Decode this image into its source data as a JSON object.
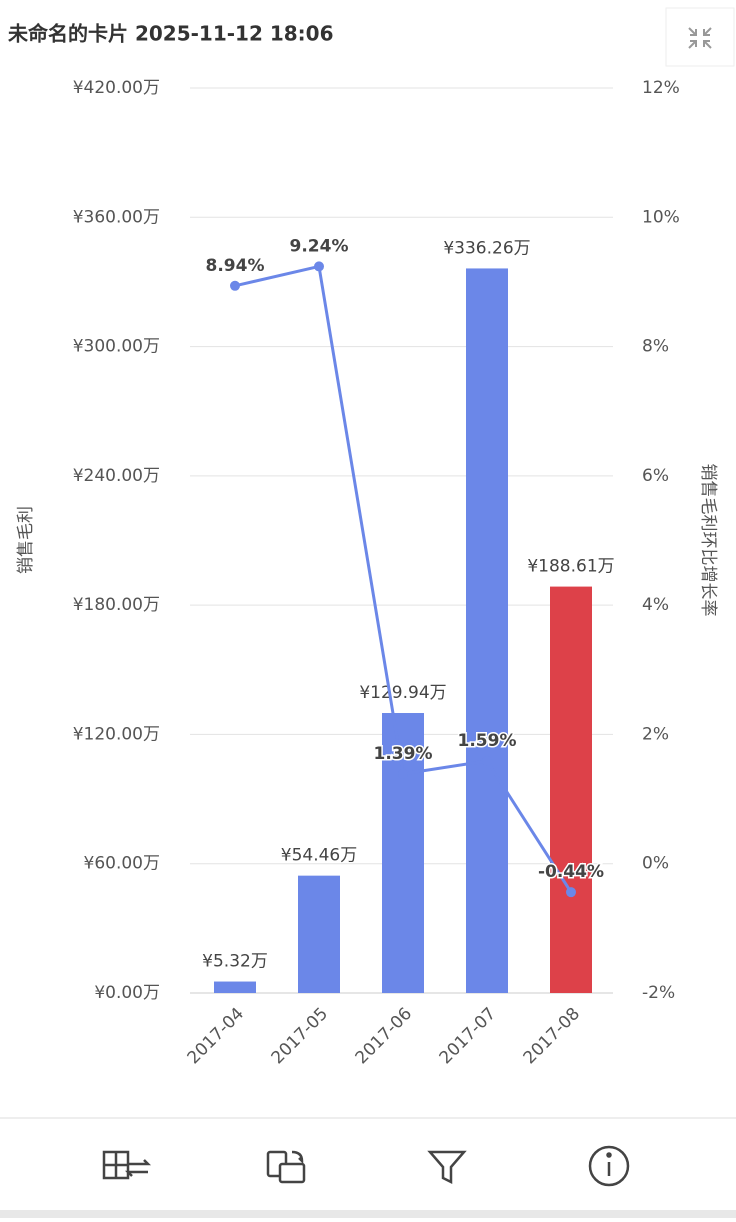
{
  "header": {
    "title": "未命名的卡片 2025-11-12 18:06"
  },
  "chart_data": {
    "type": "bar",
    "categories": [
      "2017-04",
      "2017-05",
      "2017-06",
      "2017-07",
      "2017-08"
    ],
    "y_label": "销售毛利",
    "y2_label": "销售毛利环比增长率",
    "ylim": [
      0,
      420
    ],
    "yticks": [
      {
        "value": 0,
        "label": "¥0.00万"
      },
      {
        "value": 60,
        "label": "¥60.00万"
      },
      {
        "value": 120,
        "label": "¥120.00万"
      },
      {
        "value": 180,
        "label": "¥180.00万"
      },
      {
        "value": 240,
        "label": "¥240.00万"
      },
      {
        "value": 300,
        "label": "¥300.00万"
      },
      {
        "value": 360,
        "label": "¥360.00万"
      },
      {
        "value": 420,
        "label": "¥420.00万"
      }
    ],
    "y2lim": [
      -2,
      12
    ],
    "y2ticks": [
      {
        "value": -2,
        "label": "-2%"
      },
      {
        "value": 0,
        "label": "0%"
      },
      {
        "value": 2,
        "label": "2%"
      },
      {
        "value": 4,
        "label": "4%"
      },
      {
        "value": 6,
        "label": "6%"
      },
      {
        "value": 8,
        "label": "8%"
      },
      {
        "value": 10,
        "label": "10%"
      },
      {
        "value": 12,
        "label": "12%"
      }
    ],
    "grid": true,
    "series": [
      {
        "type": "bar",
        "values": [
          5.32,
          54.46,
          129.94,
          336.26,
          188.61
        ],
        "value_labels": [
          "¥5.32万",
          "¥54.46万",
          "¥129.94万",
          "¥336.26万",
          "¥188.61万"
        ],
        "colors": [
          "#6b87e8",
          "#6b87e8",
          "#6b87e8",
          "#6b87e8",
          "#dd4149"
        ]
      },
      {
        "type": "line",
        "axis": "y2",
        "color": "#6b87e8",
        "values": [
          8.94,
          9.24,
          1.39,
          1.59,
          -0.44
        ],
        "value_labels": [
          "8.94%",
          "9.24%",
          "1.39%",
          "1.59%",
          "-0.44%"
        ]
      }
    ]
  }
}
